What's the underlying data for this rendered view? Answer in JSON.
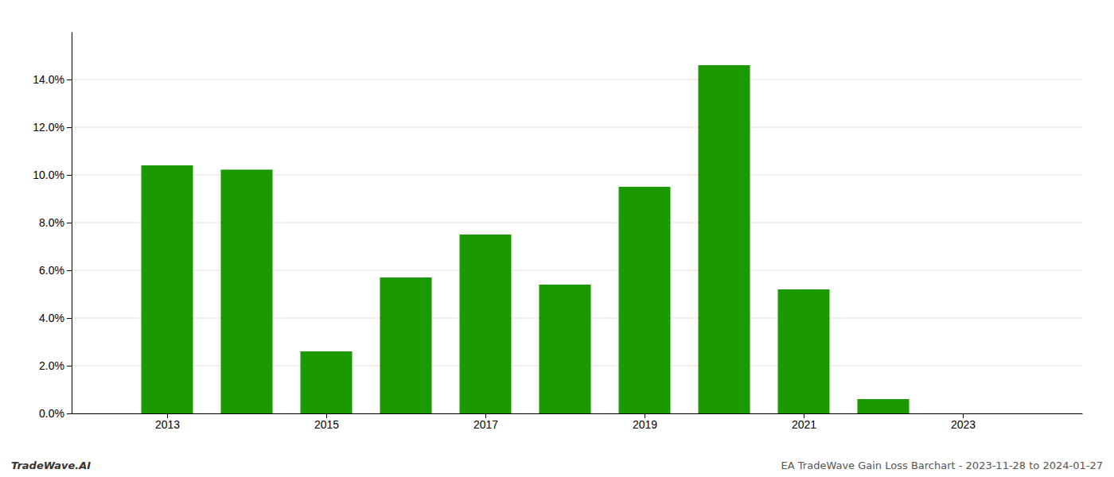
{
  "chart_data": {
    "type": "bar",
    "x": [
      2013,
      2014,
      2015,
      2016,
      2017,
      2018,
      2019,
      2020,
      2021,
      2022,
      2023
    ],
    "values": [
      0.104,
      0.1022,
      0.026,
      0.057,
      0.075,
      0.054,
      0.095,
      0.146,
      0.052,
      0.006,
      0.0
    ],
    "color": "#1a9a00",
    "xlim": [
      2011.8,
      2024.5
    ],
    "xticks": [
      2013,
      2015,
      2017,
      2019,
      2021,
      2023
    ],
    "ylim": [
      0,
      0.16
    ],
    "yticks": [
      {
        "value": 0.0,
        "label": "0.0%"
      },
      {
        "value": 0.02,
        "label": "2.0%"
      },
      {
        "value": 0.04,
        "label": "4.0%"
      },
      {
        "value": 0.06,
        "label": "6.0%"
      },
      {
        "value": 0.08,
        "label": "8.0%"
      },
      {
        "value": 0.1,
        "label": "10.0%"
      },
      {
        "value": 0.12,
        "label": "12.0%"
      },
      {
        "value": 0.14,
        "label": "14.0%"
      }
    ],
    "grid": true,
    "annotations": [
      "TradeWave.AI",
      "EA TradeWave Gain Loss Barchart - 2023-11-28 to 2024-01-27"
    ]
  }
}
